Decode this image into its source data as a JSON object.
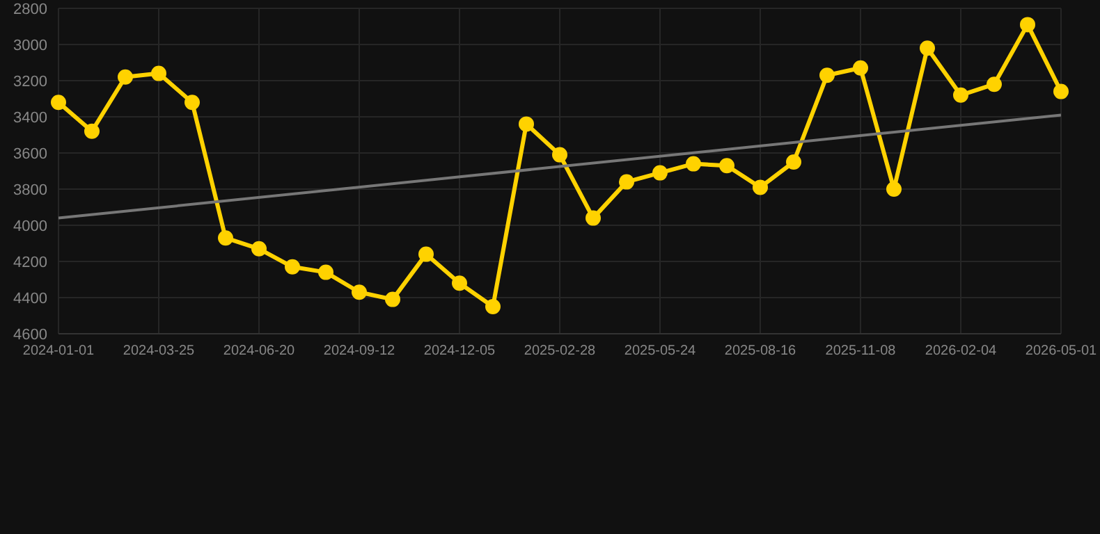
{
  "chart_data": {
    "type": "line",
    "categories": [
      "2024-01-01",
      null,
      null,
      "2024-03-25",
      null,
      null,
      "2024-06-20",
      null,
      null,
      "2024-09-12",
      null,
      null,
      "2024-12-05",
      null,
      null,
      "2025-02-28",
      null,
      null,
      "2025-05-24",
      null,
      null,
      "2025-08-16",
      null,
      null,
      "2025-11-08",
      null,
      null,
      "2026-02-04",
      null,
      null,
      "2026-05-01"
    ],
    "series": [
      {
        "color": "#ffd200",
        "values": [
          3320,
          3480,
          3180,
          3160,
          3320,
          4070,
          4130,
          4230,
          4260,
          4370,
          4410,
          4160,
          4320,
          4450,
          3440,
          3610,
          3960,
          3760,
          3710,
          3660,
          3670,
          3790,
          3650,
          3170,
          3130,
          3800,
          3020,
          3280,
          3220,
          2890,
          3260
        ]
      },
      {
        "type": "line",
        "color": "#777777",
        "marker": "none",
        "values": [
          3960,
          null,
          null,
          null,
          null,
          null,
          null,
          null,
          null,
          null,
          null,
          null,
          null,
          null,
          null,
          null,
          null,
          null,
          null,
          null,
          null,
          null,
          null,
          null,
          null,
          null,
          null,
          null,
          null,
          null,
          3390
        ]
      }
    ],
    "ylim": [
      4600,
      2800
    ],
    "yticks": [
      2800,
      3000,
      3200,
      3400,
      3600,
      3800,
      4000,
      4200,
      4400,
      4600
    ],
    "grid": true,
    "marker": "circle",
    "line_style": "solid"
  }
}
